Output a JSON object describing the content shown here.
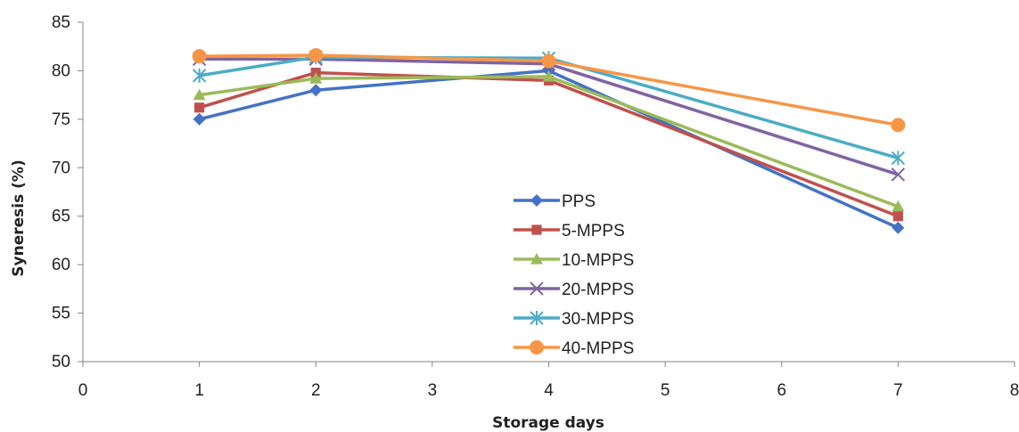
{
  "chart_data": {
    "type": "line",
    "xlabel": "Storage days",
    "ylabel": "Syneresis (%)",
    "xlim": [
      0,
      8
    ],
    "ylim": [
      50,
      85
    ],
    "x_ticks": [
      "0",
      "1",
      "2",
      "3",
      "4",
      "5",
      "6",
      "7",
      "8"
    ],
    "y_ticks": [
      "50",
      "55",
      "60",
      "65",
      "70",
      "75",
      "80",
      "85"
    ],
    "grid": false,
    "legend_position": "center",
    "x": [
      1,
      2,
      4,
      7
    ],
    "series": [
      {
        "name": "PPS",
        "values": [
          75.0,
          78.0,
          80.0,
          63.8
        ],
        "color": "#4472C4",
        "marker": "diamond"
      },
      {
        "name": "5-MPPS",
        "values": [
          76.2,
          79.8,
          79.0,
          65.0
        ],
        "color": "#C0504D",
        "marker": "square"
      },
      {
        "name": "10-MPPS",
        "values": [
          77.5,
          79.2,
          79.4,
          66.0
        ],
        "color": "#9BBB59",
        "marker": "triangle"
      },
      {
        "name": "20-MPPS",
        "values": [
          81.2,
          81.2,
          80.7,
          69.3
        ],
        "color": "#8064A2",
        "marker": "x"
      },
      {
        "name": "30-MPPS",
        "values": [
          79.5,
          81.4,
          81.3,
          71.0
        ],
        "color": "#4BACC6",
        "marker": "star"
      },
      {
        "name": "40-MPPS",
        "values": [
          81.5,
          81.6,
          81.0,
          74.4
        ],
        "color": "#F79646",
        "marker": "circle"
      }
    ]
  }
}
